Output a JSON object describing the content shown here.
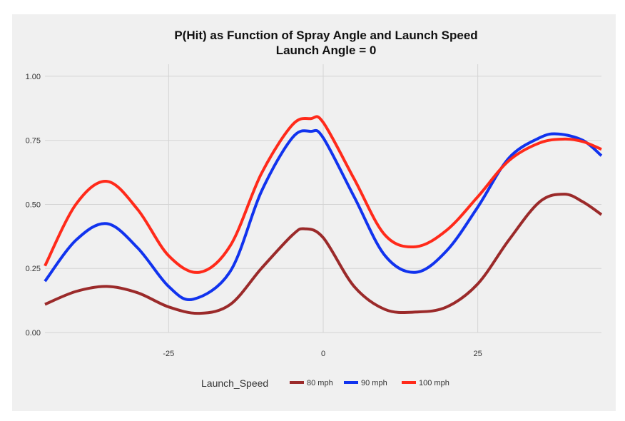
{
  "chart_data": {
    "type": "line",
    "title": "P(Hit) as Function of Spray Angle and Launch Speed",
    "subtitle": "Launch Angle =  0",
    "xlabel": "",
    "ylabel": "",
    "xlim": [
      -45,
      45
    ],
    "ylim": [
      0,
      1
    ],
    "x_ticks": [
      -25,
      0,
      25
    ],
    "x_tick_labels": [
      "-25",
      "0",
      "25"
    ],
    "y_ticks": [
      0,
      0.25,
      0.5,
      0.75,
      1.0
    ],
    "y_tick_labels": [
      "0.00",
      "0.25",
      "0.50",
      "0.75",
      "1.00"
    ],
    "grid": true,
    "legend": {
      "title": "Launch_Speed",
      "position": "bottom"
    },
    "series": [
      {
        "name": "80 mph",
        "color": "#9b2a2a",
        "points": [
          [
            -45,
            0.11
          ],
          [
            -40,
            0.16
          ],
          [
            -35,
            0.18
          ],
          [
            -30,
            0.155
          ],
          [
            -25,
            0.1
          ],
          [
            -20,
            0.075
          ],
          [
            -15,
            0.11
          ],
          [
            -10,
            0.25
          ],
          [
            -5,
            0.38
          ],
          [
            -3,
            0.405
          ],
          [
            0,
            0.37
          ],
          [
            5,
            0.18
          ],
          [
            10,
            0.09
          ],
          [
            15,
            0.08
          ],
          [
            20,
            0.1
          ],
          [
            25,
            0.19
          ],
          [
            30,
            0.36
          ],
          [
            35,
            0.51
          ],
          [
            39,
            0.54
          ],
          [
            42,
            0.51
          ],
          [
            45,
            0.46
          ]
        ]
      },
      {
        "name": "90 mph",
        "color": "#1133ee",
        "points": [
          [
            -45,
            0.2
          ],
          [
            -40,
            0.36
          ],
          [
            -35,
            0.425
          ],
          [
            -30,
            0.33
          ],
          [
            -25,
            0.18
          ],
          [
            -21,
            0.13
          ],
          [
            -15,
            0.24
          ],
          [
            -10,
            0.55
          ],
          [
            -5,
            0.76
          ],
          [
            -2,
            0.785
          ],
          [
            0,
            0.76
          ],
          [
            5,
            0.53
          ],
          [
            10,
            0.3
          ],
          [
            15,
            0.235
          ],
          [
            20,
            0.32
          ],
          [
            25,
            0.49
          ],
          [
            30,
            0.68
          ],
          [
            35,
            0.76
          ],
          [
            38,
            0.775
          ],
          [
            42,
            0.75
          ],
          [
            45,
            0.69
          ]
        ]
      },
      {
        "name": "100 mph",
        "color": "#ff2a1a",
        "points": [
          [
            -45,
            0.26
          ],
          [
            -40,
            0.5
          ],
          [
            -35,
            0.59
          ],
          [
            -30,
            0.48
          ],
          [
            -25,
            0.3
          ],
          [
            -20,
            0.235
          ],
          [
            -15,
            0.34
          ],
          [
            -10,
            0.62
          ],
          [
            -5,
            0.81
          ],
          [
            -2,
            0.835
          ],
          [
            0,
            0.82
          ],
          [
            5,
            0.6
          ],
          [
            10,
            0.38
          ],
          [
            15,
            0.335
          ],
          [
            20,
            0.4
          ],
          [
            25,
            0.53
          ],
          [
            30,
            0.67
          ],
          [
            35,
            0.74
          ],
          [
            39,
            0.755
          ],
          [
            42,
            0.745
          ],
          [
            45,
            0.715
          ]
        ]
      }
    ]
  }
}
